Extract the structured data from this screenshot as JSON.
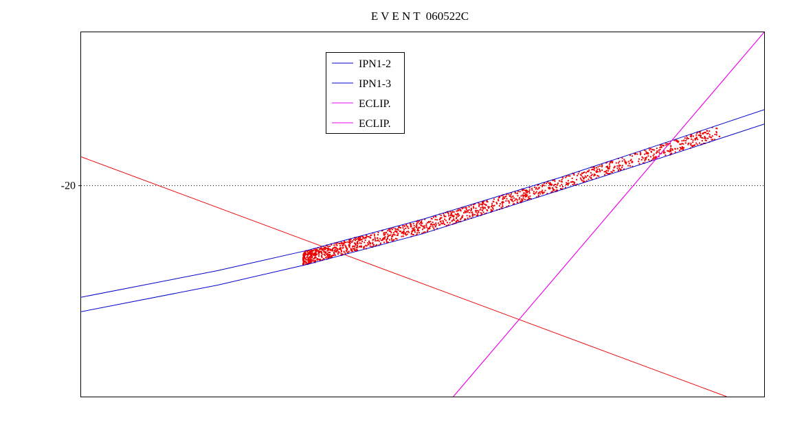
{
  "chart_data": {
    "type": "line",
    "title": "E V E N T  060522C",
    "xlabel": "",
    "ylabel": "",
    "ylim": [
      -24.52,
      -16.71
    ],
    "xlim": [
      0,
      1
    ],
    "grid": false,
    "legend_position": "top-left",
    "y_ticks": [
      {
        "value": -20,
        "label": "-20"
      }
    ],
    "reference_lines": [
      {
        "axis": "y",
        "value": -20,
        "style": "dotted"
      }
    ],
    "series": [
      {
        "name": "IPN1-2",
        "color": "#0000cc",
        "x": [
          0.0,
          0.2,
          0.33,
          0.5,
          0.7,
          0.82,
          1.0
        ],
        "y": [
          -22.39,
          -21.82,
          -21.39,
          -20.72,
          -19.83,
          -19.25,
          -18.37
        ]
      },
      {
        "name": "IPN1-3",
        "color": "#0000cc",
        "x": [
          0.0,
          0.2,
          0.33,
          0.5,
          0.7,
          0.82,
          1.0
        ],
        "y": [
          -22.7,
          -22.13,
          -21.69,
          -21.03,
          -20.1,
          -19.54,
          -18.68
        ]
      },
      {
        "name": "ECLIP.",
        "color": "#ee00ee",
        "x": [
          0.545,
          1.0
        ],
        "y": [
          -24.52,
          -16.71
        ]
      },
      {
        "name": "ECLIP.",
        "color": "#ee00ee",
        "x": [
          0.545,
          1.0
        ],
        "y": [
          -24.52,
          -16.71
        ]
      }
    ],
    "other_lines": [
      {
        "color": "#ee0000",
        "x": [
          0.0,
          0.945
        ],
        "y": [
          -19.38,
          -24.52
        ]
      }
    ],
    "scatter": {
      "color": "#ee0000",
      "x_range": [
        0.325,
        0.935
      ],
      "count": 1500
    }
  }
}
